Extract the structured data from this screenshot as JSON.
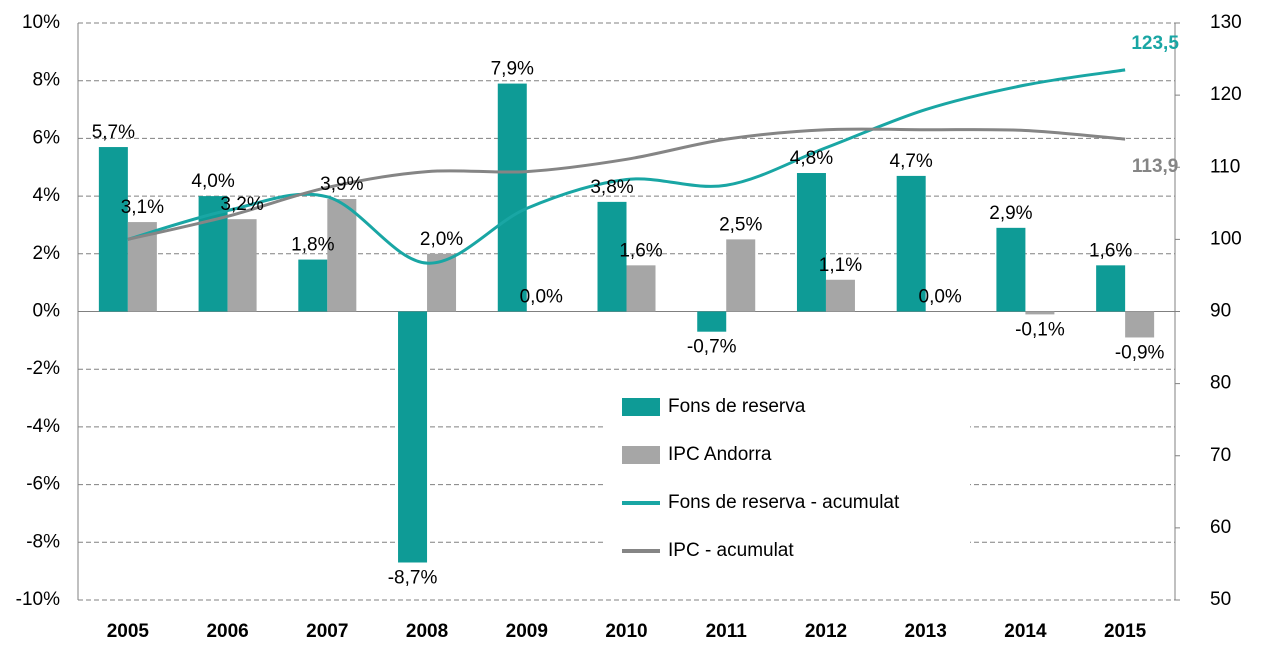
{
  "chart_data": {
    "type": "bar-line",
    "categories": [
      "2005",
      "2006",
      "2007",
      "2008",
      "2009",
      "2010",
      "2011",
      "2012",
      "2013",
      "2014",
      "2015"
    ],
    "series": [
      {
        "name": "Fons de reserva",
        "type": "bar",
        "color": "#0e9b96",
        "values": [
          5.7,
          4.0,
          1.8,
          -8.7,
          7.9,
          3.8,
          -0.7,
          4.8,
          4.7,
          2.9,
          1.6
        ],
        "value_labels": [
          "5,7%",
          "4,0%",
          "1,8%",
          "-8,7%",
          "7,9%",
          "3,8%",
          "-0,7%",
          "4,8%",
          "4,7%",
          "2,9%",
          "1,6%"
        ]
      },
      {
        "name": "IPC Andorra",
        "type": "bar",
        "color": "#a6a6a6",
        "values": [
          3.1,
          3.2,
          3.9,
          2.0,
          0.0,
          1.6,
          2.5,
          1.1,
          0.0,
          -0.1,
          -0.9
        ],
        "value_labels": [
          "3,1%",
          "3,2%",
          "3,9%",
          "2,0%",
          "0,0%",
          "1,6%",
          "2,5%",
          "1,1%",
          "0,0%",
          "-0,1%",
          "-0,9%"
        ]
      },
      {
        "name": "Fons de reserva - acumulat",
        "type": "line",
        "axis": "y2",
        "color": "#19a6a4",
        "values": [
          100,
          104,
          105.9,
          96.7,
          104.3,
          108.3,
          107.5,
          112.7,
          118,
          121.4,
          123.5
        ],
        "value_labels": [
          null,
          null,
          null,
          null,
          null,
          null,
          null,
          null,
          null,
          null,
          "123,5"
        ]
      },
      {
        "name": "IPC - acumulat",
        "type": "line",
        "axis": "y2",
        "color": "#858585",
        "values": [
          100,
          103.2,
          107.2,
          109.4,
          109.4,
          111.1,
          113.9,
          115.2,
          115.2,
          115.1,
          113.9
        ],
        "value_labels": [
          null,
          null,
          null,
          null,
          null,
          null,
          null,
          null,
          null,
          null,
          "113,9"
        ]
      }
    ],
    "ylim": [
      -10,
      10
    ],
    "yticks": [
      {
        "value": -10,
        "label": "-10%"
      },
      {
        "value": -8,
        "label": "-8%"
      },
      {
        "value": -6,
        "label": "-6%"
      },
      {
        "value": -4,
        "label": "-4%"
      },
      {
        "value": -2,
        "label": "-2%"
      },
      {
        "value": 0,
        "label": "0%"
      },
      {
        "value": 2,
        "label": "2%"
      },
      {
        "value": 4,
        "label": "4%"
      },
      {
        "value": 6,
        "label": "6%"
      },
      {
        "value": 8,
        "label": "8%"
      },
      {
        "value": 10,
        "label": "10%"
      }
    ],
    "y2lim": [
      50,
      130
    ],
    "y2ticks": [
      50,
      60,
      70,
      80,
      90,
      100,
      110,
      120,
      130
    ],
    "grid": true
  }
}
